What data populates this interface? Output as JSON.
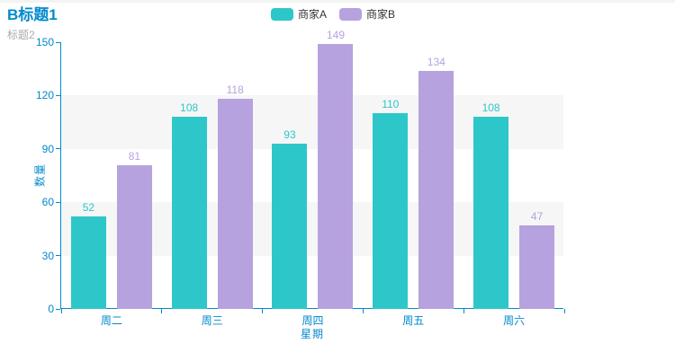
{
  "title": {
    "text": "B标题1",
    "subtext": "标题2",
    "color": "#008acd",
    "subtext_color": "#aaaaaa"
  },
  "legend": {
    "position": "top-center",
    "text_color": "#333333",
    "items": [
      {
        "label": "商家A",
        "color": "#2ec7c9"
      },
      {
        "label": "商家B",
        "color": "#b6a2de"
      }
    ]
  },
  "axes": {
    "line_color": "#008acd",
    "label_color": "#008acd",
    "split_band_color": "#f6f6f6"
  },
  "chart_data": {
    "type": "bar",
    "title": "B标题1",
    "subtitle": "标题2",
    "categories": [
      "周二",
      "周三",
      "周四",
      "周五",
      "周六"
    ],
    "series": [
      {
        "name": "商家A",
        "color": "#2ec7c9",
        "values": [
          52,
          108,
          93,
          110,
          108
        ]
      },
      {
        "name": "商家B",
        "color": "#b6a2de",
        "values": [
          81,
          118,
          149,
          134,
          47
        ]
      }
    ],
    "xlabel": "星期",
    "ylabel": "数量",
    "ylim": [
      0,
      150
    ],
    "yticks": [
      0,
      30,
      60,
      90,
      120,
      150
    ],
    "grid": false,
    "split_area_bands": [
      [
        30,
        60
      ],
      [
        90,
        120
      ]
    ],
    "bar_labels": true,
    "legend_position": "top-center"
  }
}
